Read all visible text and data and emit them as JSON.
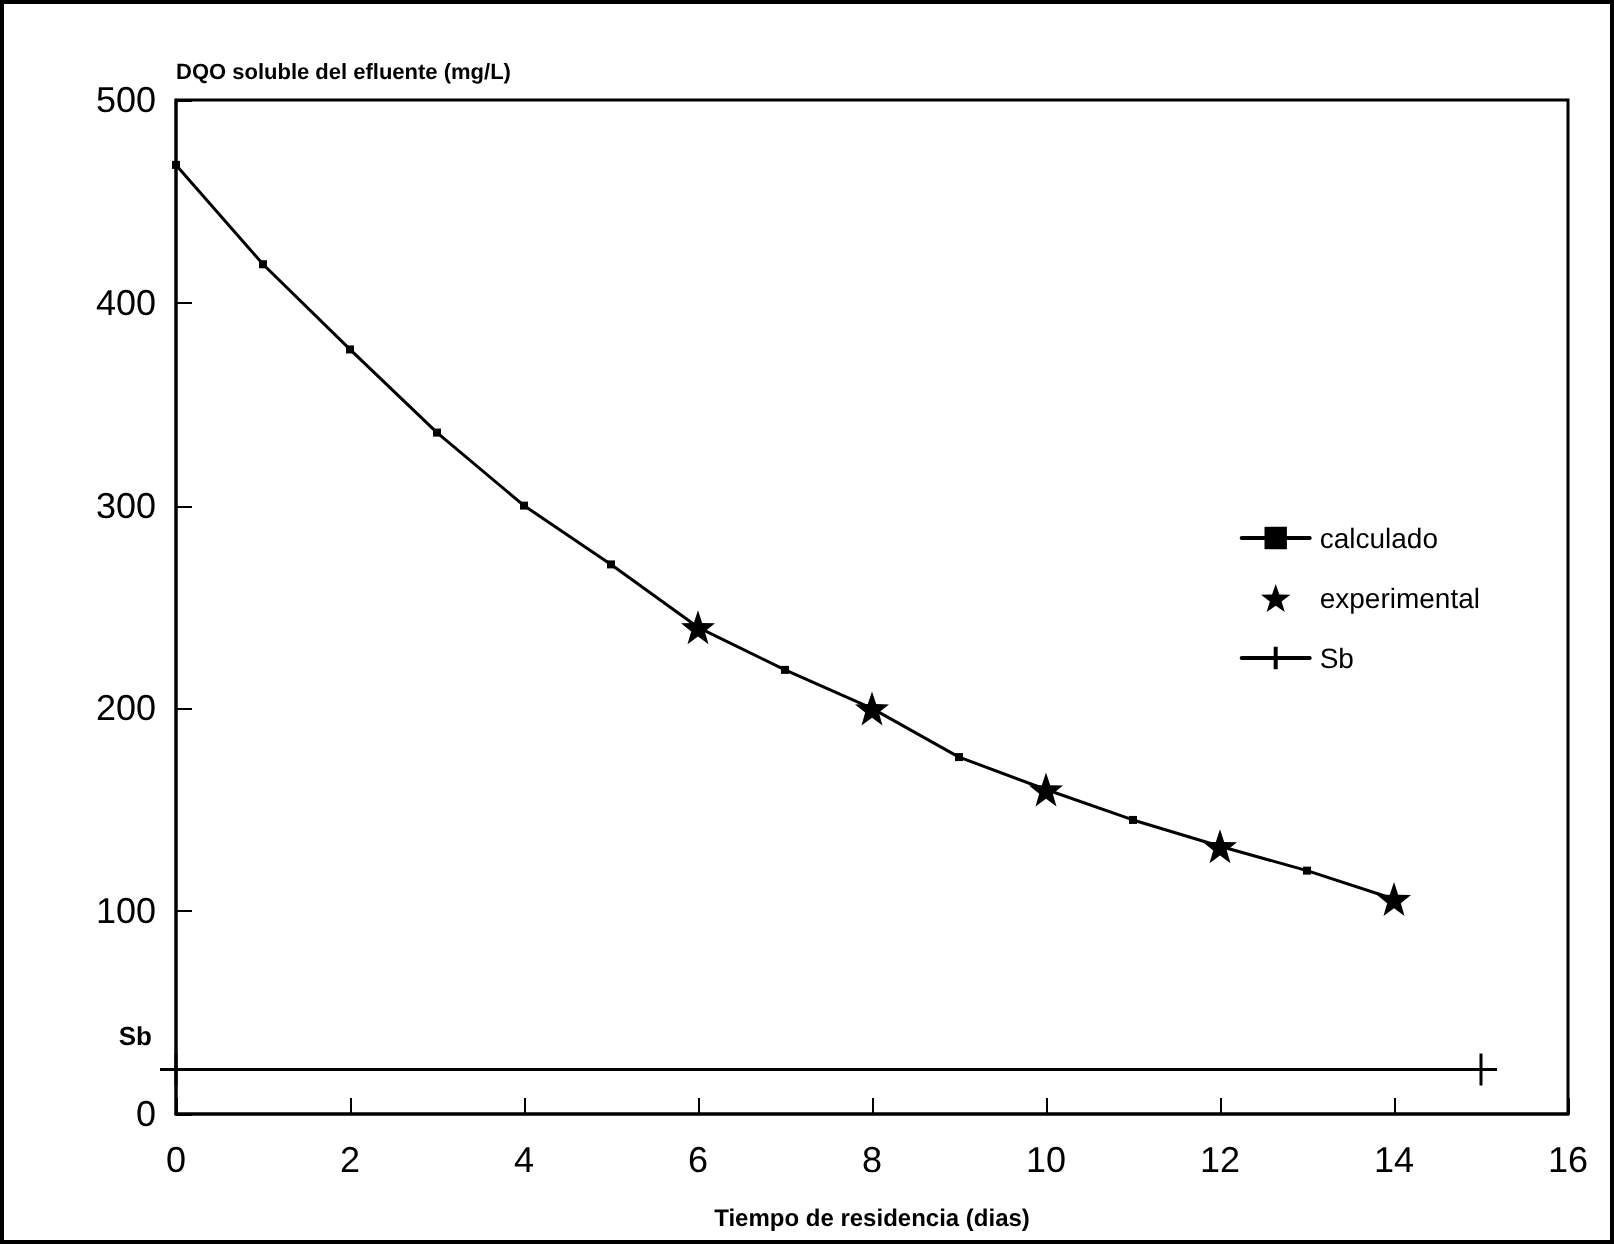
{
  "chart_data": {
    "type": "line",
    "xlabel": "Tiempo de residencia (dias)",
    "ylabel": "DQO soluble del efluente (mg/L)",
    "xlim": [
      0,
      16
    ],
    "xticks": [
      0,
      2,
      4,
      6,
      8,
      10,
      12,
      14,
      16
    ],
    "ylim": [
      0,
      500
    ],
    "yticks": [
      0,
      100,
      200,
      300,
      400,
      500
    ],
    "legend": "right",
    "grid": false,
    "series": [
      {
        "name": "calculado",
        "type": "line",
        "marker": "square",
        "color": "#000000",
        "x": [
          0,
          1,
          2,
          3,
          4,
          5,
          6,
          7,
          8,
          9,
          10,
          11,
          12,
          13,
          14
        ],
        "values": [
          468,
          419,
          377,
          336,
          300,
          271,
          240,
          219,
          200,
          176,
          160,
          145,
          132,
          120,
          106
        ]
      },
      {
        "name": "experimental",
        "type": "scatter",
        "marker": "star",
        "color": "#000000",
        "x": [
          6,
          8,
          10,
          12,
          14
        ],
        "values": [
          240,
          200,
          160,
          132,
          106
        ]
      },
      {
        "name": "Sb",
        "type": "line",
        "marker": "cross",
        "color": "#000000",
        "x": [
          0,
          15
        ],
        "values": [
          22,
          22
        ]
      }
    ],
    "annotations": [
      {
        "text": "Sb",
        "x": 0,
        "y": 22
      }
    ]
  }
}
